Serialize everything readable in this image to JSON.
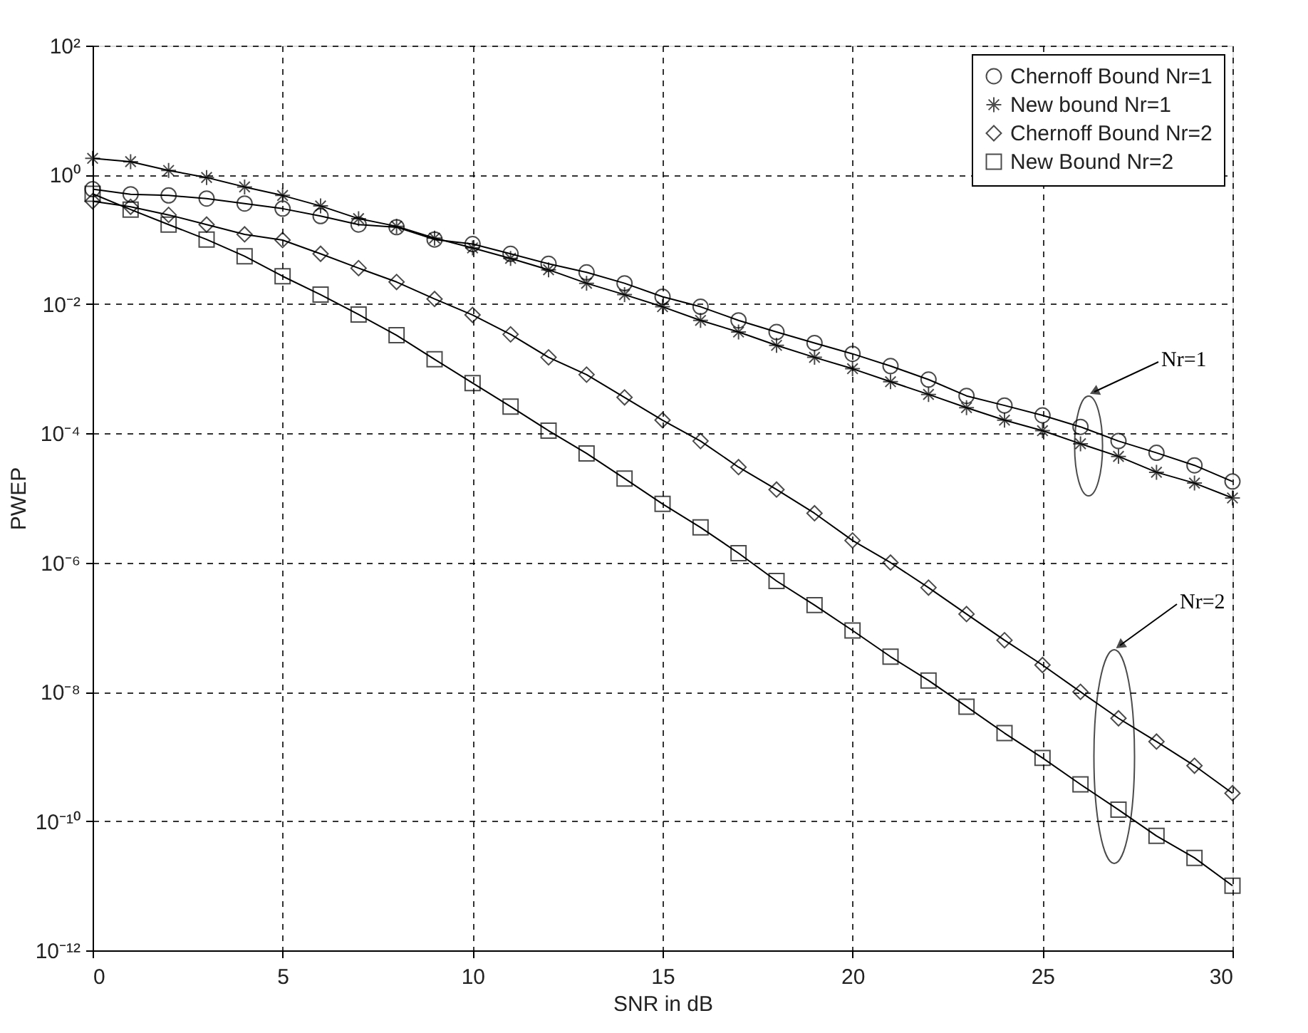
{
  "chart_data": {
    "type": "line",
    "xlabel": "SNR in dB",
    "ylabel": "PWEP",
    "x": [
      0,
      1,
      2,
      3,
      4,
      5,
      6,
      7,
      8,
      9,
      10,
      11,
      12,
      13,
      14,
      15,
      16,
      17,
      18,
      19,
      20,
      21,
      22,
      23,
      24,
      25,
      26,
      27,
      28,
      29,
      30
    ],
    "series": [
      {
        "name": "Chernoff Bound Nr=1",
        "color": "#000000",
        "marker": "circle",
        "values": [
          0.6,
          0.5,
          0.48,
          0.43,
          0.36,
          0.3,
          0.23,
          0.17,
          0.155,
          0.1,
          0.085,
          0.06,
          0.042,
          0.031,
          0.021,
          0.013,
          0.0091,
          0.0056,
          0.0037,
          0.0025,
          0.0017,
          0.0011,
          0.00068,
          0.00038,
          0.00027,
          0.00019,
          0.000126,
          7.6e-05,
          5e-05,
          3.2e-05,
          1.8e-05
        ]
      },
      {
        "name": "New bound Nr=1",
        "color": "#000000",
        "marker": "cross",
        "values": [
          1.8,
          1.6,
          1.17,
          0.91,
          0.65,
          0.48,
          0.33,
          0.21,
          0.16,
          0.105,
          0.074,
          0.051,
          0.034,
          0.021,
          0.014,
          0.0091,
          0.0056,
          0.0037,
          0.0023,
          0.0015,
          0.001,
          0.00063,
          0.0004,
          0.00025,
          0.00016,
          0.00011,
          6.9e-05,
          4.4e-05,
          2.5e-05,
          1.7e-05,
          1e-05
        ]
      },
      {
        "name": "Chernoff Bound Nr=2",
        "color": "#000000",
        "marker": "diamond",
        "values": [
          0.39,
          0.32,
          0.24,
          0.17,
          0.12,
          0.098,
          0.06,
          0.036,
          0.022,
          0.012,
          0.0068,
          0.0034,
          0.0015,
          0.00081,
          0.00036,
          0.00016,
          7.6e-05,
          3e-05,
          1.35e-05,
          5.8e-06,
          2.2e-06,
          1e-06,
          4.1e-07,
          1.6e-07,
          6.3e-08,
          2.6e-08,
          1e-08,
          3.9e-09,
          1.7e-09,
          7.2e-10,
          2.7e-10
        ]
      },
      {
        "name": "New Bound Nr=2",
        "color": "#000000",
        "marker": "square",
        "values": [
          0.51,
          0.29,
          0.17,
          0.1,
          0.055,
          0.027,
          0.014,
          0.0069,
          0.0033,
          0.0014,
          0.0006,
          0.00026,
          0.00011,
          4.9e-05,
          2e-05,
          8.1e-06,
          3.5e-06,
          1.4e-06,
          5.2e-07,
          2.2e-07,
          8.9e-08,
          3.5e-08,
          1.5e-08,
          5.9e-09,
          2.3e-09,
          9.5e-10,
          3.7e-10,
          1.5e-10,
          5.9e-11,
          2.7e-11,
          1e-11
        ]
      }
    ],
    "annotations": [
      "Nr=1",
      "Nr=2"
    ],
    "xlim": [
      0,
      30
    ],
    "xticks": [
      0,
      5,
      10,
      15,
      20,
      25,
      30
    ],
    "ylim": [
      1e-12,
      100
    ],
    "log": true,
    "yticks": [
      {
        "value": 1e-12,
        "label": "10⁻¹²"
      },
      {
        "value": 1e-10,
        "label": "10⁻¹⁰"
      },
      {
        "value": 1e-08,
        "label": "10⁻⁸"
      },
      {
        "value": 1e-06,
        "label": "10⁻⁶"
      },
      {
        "value": 0.0001,
        "label": "10⁻⁴"
      },
      {
        "value": 0.01,
        "label": "10⁻²"
      },
      {
        "value": 1,
        "label": "10⁰"
      },
      {
        "value": 100,
        "label": "10²"
      }
    ],
    "grid": true,
    "legend": "top right",
    "line_style": "solid"
  }
}
